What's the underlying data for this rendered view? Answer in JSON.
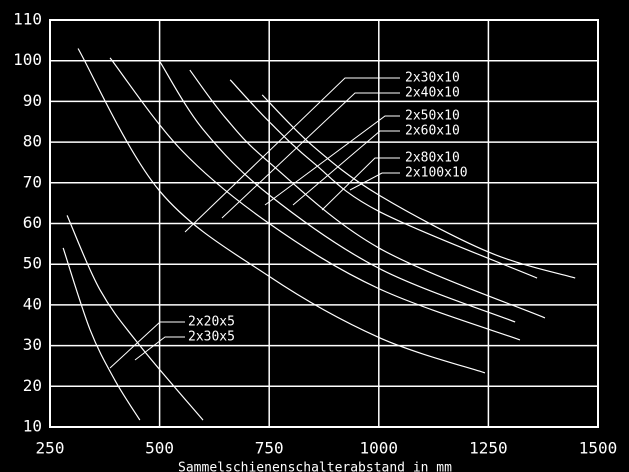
{
  "chart_data": {
    "type": "line",
    "x_label": "Sammelschienenschalterabstand in mm",
    "xlim": [
      250,
      1500
    ],
    "xticks": [
      250,
      500,
      750,
      1000,
      1250,
      1500
    ],
    "ylim": [
      10,
      110
    ],
    "yticks": [
      10,
      20,
      30,
      40,
      50,
      60,
      70,
      80,
      90,
      100,
      110
    ],
    "grid": true,
    "color": "#ffffff",
    "series": [
      {
        "name": "2x30x10",
        "x": [
          314,
          500,
          750,
          1000,
          1242
        ],
        "values": [
          103,
          68,
          47,
          32,
          23.3
        ]
      },
      {
        "name": "2x40x10",
        "x": [
          387,
          550,
          750,
          1000,
          1322
        ],
        "values": [
          100.7,
          78,
          60,
          44,
          31.4
        ]
      },
      {
        "name": "2x50x10",
        "x": [
          501,
          600,
          750,
          1000,
          1311
        ],
        "values": [
          99.7,
          83,
          67,
          49,
          35.8
        ]
      },
      {
        "name": "2x60x10",
        "x": [
          569,
          650,
          750,
          1000,
          1379
        ],
        "values": [
          97.7,
          86,
          75,
          54,
          36.8
        ]
      },
      {
        "name": "2x80x10",
        "x": [
          661,
          750,
          850,
          1000,
          1361
        ],
        "values": [
          95.3,
          85,
          75,
          63,
          46.6
        ]
      },
      {
        "name": "2x100x10",
        "x": [
          734,
          850,
          1000,
          1250,
          1448
        ],
        "values": [
          91.6,
          79,
          67,
          53,
          46.6
        ]
      },
      {
        "name": "2x20x5",
        "x": [
          280,
          341,
          398,
          455
        ],
        "values": [
          54,
          34,
          21.5,
          11.7
        ]
      },
      {
        "name": "2x30x5",
        "x": [
          289,
          364,
          455,
          599
        ],
        "values": [
          62,
          43.7,
          30,
          11.7
        ]
      }
    ]
  }
}
